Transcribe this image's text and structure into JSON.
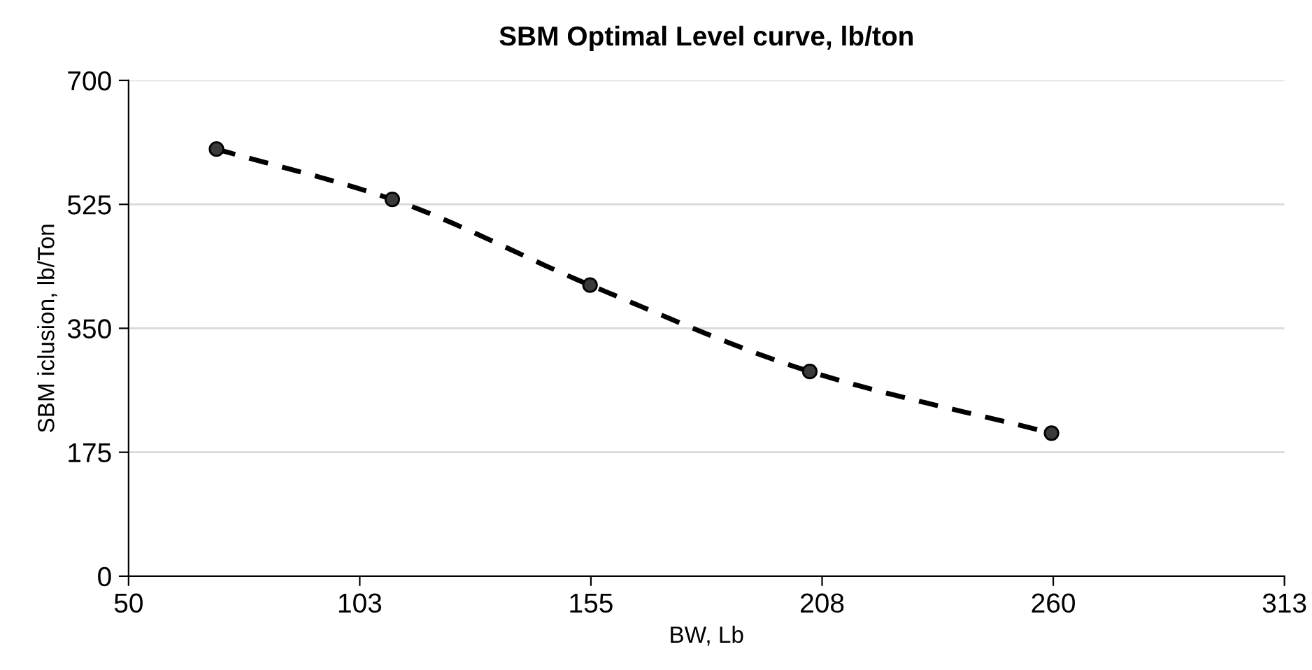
{
  "chart_data": {
    "type": "line",
    "title": "SBM Optimal Level curve, lb/ton",
    "xlabel": "BW, Lb",
    "ylabel": "SBM iclusion, lb/Ton",
    "x": [
      70,
      110,
      155,
      205,
      260
    ],
    "series": [
      {
        "color": "#000000",
        "values": [
          603,
          532,
          411,
          289,
          202
        ]
      }
    ],
    "marker": "circle",
    "line_style": "dashed",
    "grid": "y",
    "legend": false,
    "xlim": [
      50,
      313
    ],
    "xticks": [
      50,
      {
        "value": 102.6,
        "label": "103"
      },
      {
        "value": 155.2,
        "label": "155"
      },
      {
        "value": 207.8,
        "label": "208"
      },
      {
        "value": 260.4,
        "label": "260"
      },
      313
    ],
    "ylim": [
      0,
      700
    ],
    "yticks": [
      0,
      175,
      350,
      525,
      700
    ]
  }
}
